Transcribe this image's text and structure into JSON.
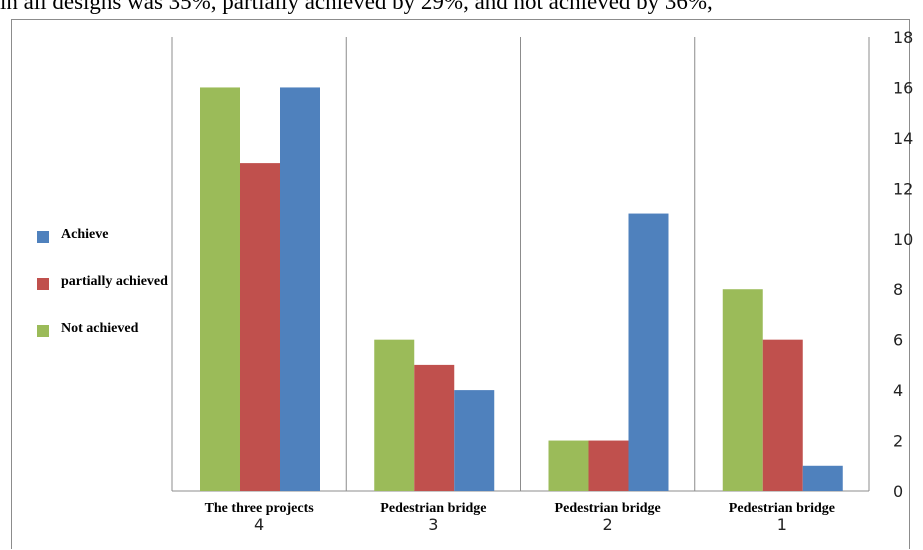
{
  "caption_fragment": "in all designs was 35%, partially achieved by 29%, and not achieved by 36%,",
  "chart_data": {
    "type": "bar",
    "categories": [
      {
        "label": "The three projects",
        "number": "4"
      },
      {
        "label": "Pedestrian bridge",
        "number": "3"
      },
      {
        "label": "Pedestrian bridge",
        "number": "2"
      },
      {
        "label": "Pedestrian bridge",
        "number": "1"
      }
    ],
    "series": [
      {
        "name": "Not achieved",
        "color": "#9bbb59",
        "values": [
          16,
          6,
          2,
          8
        ]
      },
      {
        "name": "partially achieved",
        "color": "#c0504d",
        "values": [
          13,
          5,
          2,
          6
        ]
      },
      {
        "name": "Achieve",
        "color": "#4f81bd",
        "values": [
          16,
          4,
          11,
          1
        ]
      }
    ],
    "legend_order": [
      "Achieve",
      "partially achieved",
      "Not achieved"
    ],
    "legend_colors": {
      "Achieve": "#4f81bd",
      "partially achieved": "#c0504d",
      "Not achieved": "#9bbb59"
    },
    "y_ticks": [
      0,
      2,
      4,
      6,
      8,
      10,
      12,
      14,
      16,
      18
    ],
    "ylim": [
      0,
      18
    ],
    "y_axis_side": "right",
    "legend_position": "left",
    "grid": "vertical separators between categories"
  }
}
